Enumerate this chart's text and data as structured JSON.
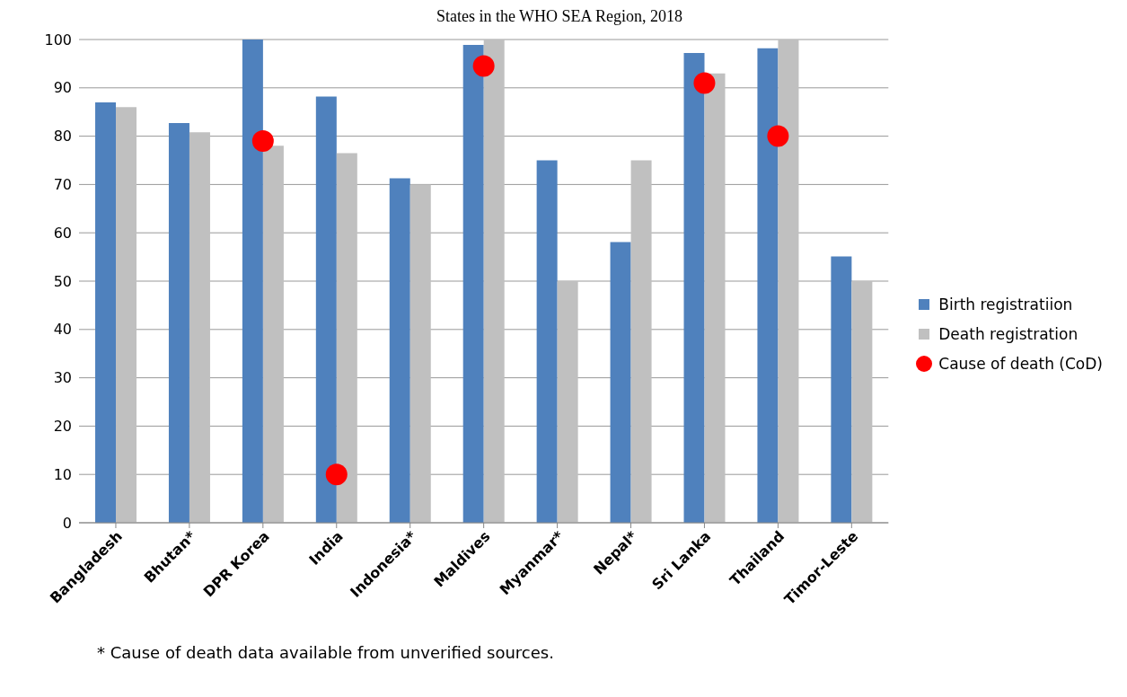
{
  "chart_data": {
    "type": "bar",
    "title": "States in the WHO SEA Region, 2018",
    "categories": [
      "Bangladesh",
      "Bhutan*",
      "DPR Korea",
      "India",
      "Indonesia*",
      "Maldives",
      "Myanmar*",
      "Nepal*",
      "Sri Lanka",
      "Thailand",
      "Timor-Leste"
    ],
    "series": [
      {
        "name": "Birth registratiion",
        "color": "#4f81bd",
        "values": [
          87,
          82.7,
          100,
          88.2,
          71.3,
          98.9,
          75,
          58.1,
          97.2,
          98.2,
          55.1
        ]
      },
      {
        "name": "Death registration",
        "color": "#c0c0c0",
        "values": [
          86,
          80.8,
          78,
          76.5,
          70,
          100,
          50,
          75,
          93,
          100,
          50
        ]
      },
      {
        "name": "Cause  of death (CoD)",
        "type": "scatter",
        "color": "#ff0000",
        "marker": "circle",
        "values": [
          null,
          null,
          79,
          10,
          null,
          94.5,
          null,
          null,
          91,
          80,
          null
        ]
      }
    ],
    "ylim": [
      0,
      100
    ],
    "yticks": [
      0,
      10,
      20,
      30,
      40,
      50,
      60,
      70,
      80,
      90,
      100
    ],
    "grid": "y",
    "legend": "right",
    "annotations": [
      "* Cause of death data available from unverified sources."
    ]
  }
}
